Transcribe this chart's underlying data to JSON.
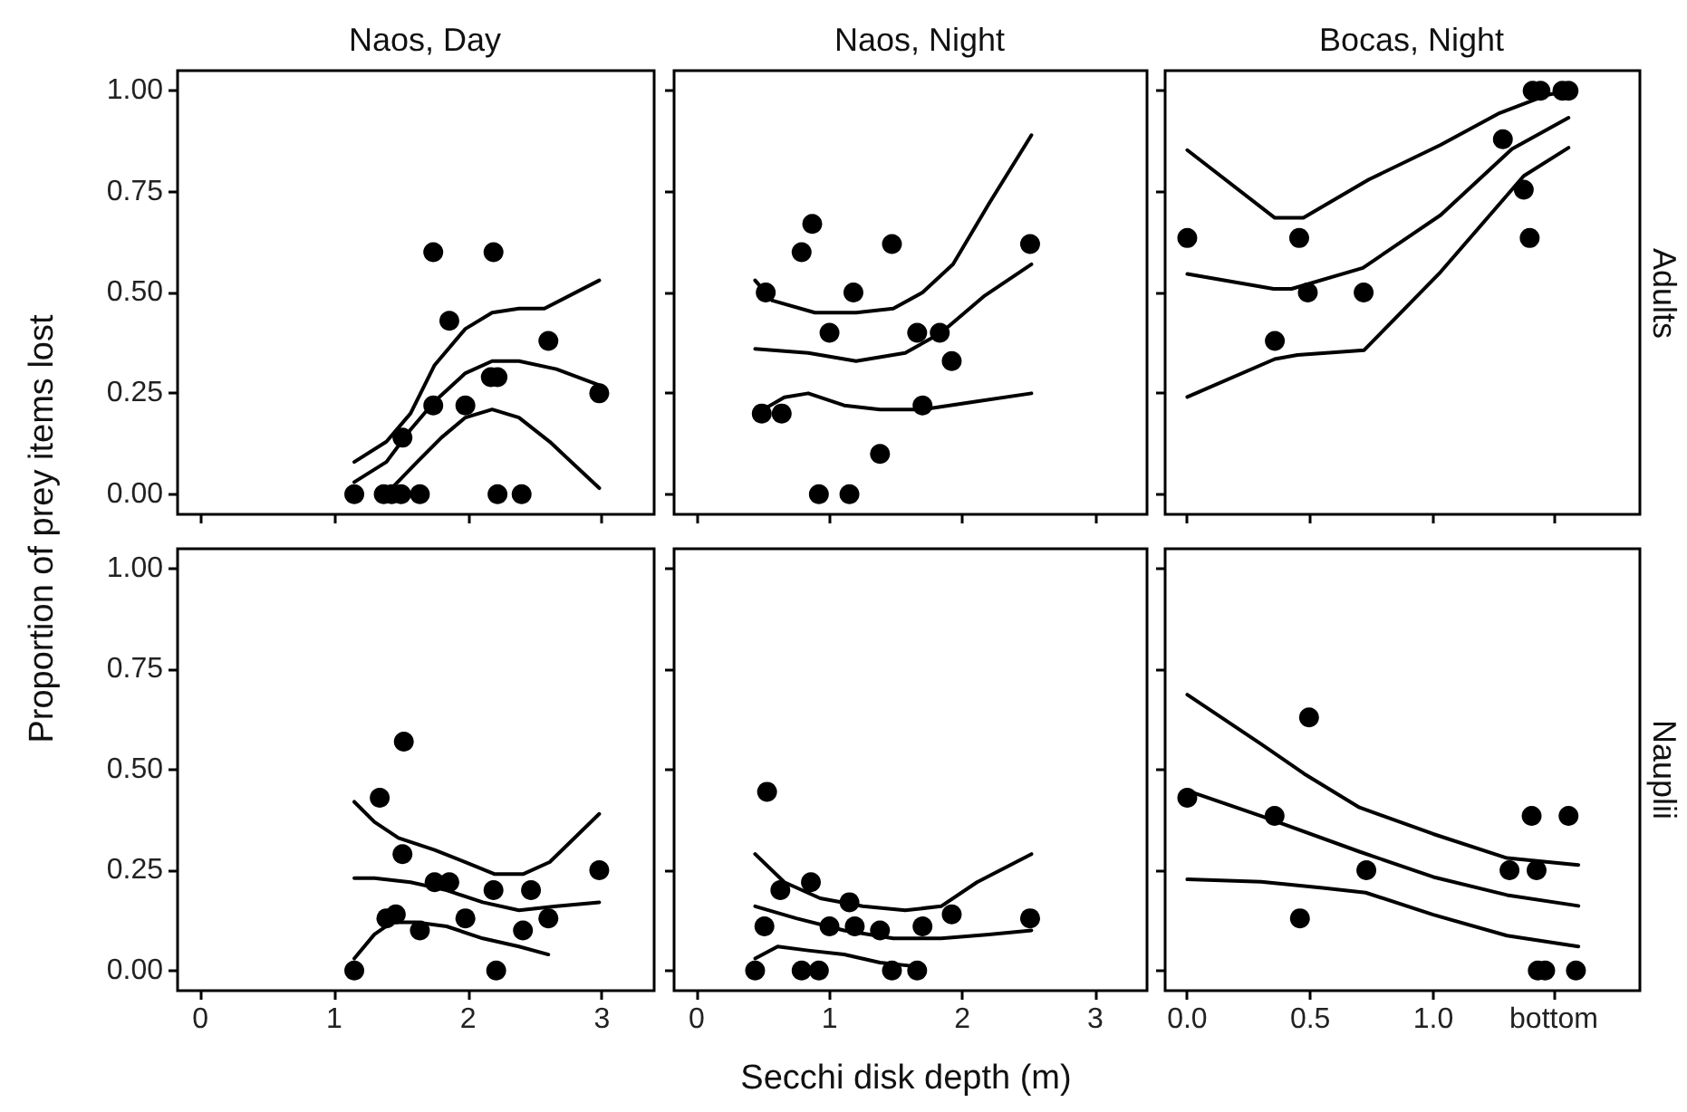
{
  "chart_data": [
    {
      "type": "scatter",
      "title": "Naos, Day",
      "ylabel": "Proportion of prey items lost",
      "xlim": [
        -0.17,
        3.39
      ],
      "xticks": [
        0,
        1,
        2,
        3
      ],
      "ylim": [
        -0.05,
        1.05
      ],
      "yticks": [
        {
          "value": 0,
          "label": "0.00"
        },
        {
          "value": 0.25,
          "label": "0.25"
        },
        {
          "value": 0.5,
          "label": "0.50"
        },
        {
          "value": 0.75,
          "label": "0.75"
        },
        {
          "value": 1,
          "label": "1.00"
        }
      ],
      "tick_labels": "y",
      "series": [
        {
          "color": "#000000",
          "x": [
            1.15,
            1.37,
            1.43,
            1.5,
            1.64,
            1.51,
            1.74,
            2.19,
            1.86,
            1.74,
            1.98,
            2.17,
            2.22,
            2.6,
            2.98,
            2.22,
            2.4
          ],
          "values": [
            0,
            0,
            0,
            0,
            0,
            0.14,
            0.6,
            0.6,
            0.43,
            0.22,
            0.22,
            0.29,
            0.29,
            0.38,
            0.25,
            0,
            0
          ]
        },
        {
          "type": "line",
          "color": "#000000",
          "x": [
            1.15,
            1.39,
            1.57,
            1.75,
            1.98,
            2.18,
            2.38,
            2.57,
            2.98
          ],
          "values": [
            0.08,
            0.13,
            0.2,
            0.32,
            0.41,
            0.45,
            0.46,
            0.46,
            0.53
          ]
        },
        {
          "type": "line",
          "color": "#000000",
          "x": [
            1.15,
            1.39,
            1.57,
            1.75,
            1.98,
            2.18,
            2.38,
            2.66,
            2.98
          ],
          "values": [
            0.03,
            0.08,
            0.16,
            0.23,
            0.3,
            0.33,
            0.33,
            0.31,
            0.27
          ]
        },
        {
          "type": "line",
          "color": "#000000",
          "x": [
            1.43,
            1.62,
            1.8,
            1.98,
            2.18,
            2.38,
            2.61,
            2.98
          ],
          "values": [
            0.015,
            0.08,
            0.14,
            0.19,
            0.21,
            0.19,
            0.13,
            0.015
          ]
        }
      ]
    },
    {
      "type": "scatter",
      "title": "Naos, Night",
      "xlim": [
        -0.17,
        3.39
      ],
      "xticks": [
        0,
        1,
        2,
        3
      ],
      "ylim": [
        -0.05,
        1.05
      ],
      "yticks": [
        0,
        0.25,
        0.5,
        0.75,
        1
      ],
      "tick_labels": false,
      "series": [
        {
          "color": "#000000",
          "x": [
            0.52,
            0.49,
            0.64,
            0.79,
            0.87,
            1.0,
            1.18,
            0.92,
            1.15,
            1.47,
            1.38,
            1.66,
            1.83,
            1.92,
            1.7,
            2.51
          ],
          "values": [
            0.5,
            0.2,
            0.2,
            0.6,
            0.67,
            0.4,
            0.5,
            0,
            0,
            0.62,
            0.1,
            0.4,
            0.4,
            0.33,
            0.22,
            0.62
          ]
        },
        {
          "type": "line",
          "color": "#000000",
          "x": [
            0.44,
            0.57,
            0.89,
            1.2,
            1.48,
            1.7,
            1.93,
            2.2,
            2.52
          ],
          "values": [
            0.53,
            0.48,
            0.45,
            0.45,
            0.46,
            0.5,
            0.57,
            0.72,
            0.89
          ]
        },
        {
          "type": "line",
          "color": "#000000",
          "x": [
            0.44,
            0.84,
            1.2,
            1.57,
            1.84,
            2.16,
            2.52
          ],
          "values": [
            0.36,
            0.35,
            0.33,
            0.35,
            0.4,
            0.49,
            0.57
          ]
        },
        {
          "type": "line",
          "color": "#000000",
          "x": [
            0.45,
            0.66,
            0.84,
            1.11,
            1.38,
            1.7,
            2.11,
            2.52
          ],
          "values": [
            0.2,
            0.24,
            0.25,
            0.22,
            0.21,
            0.21,
            0.23,
            0.25
          ]
        }
      ]
    },
    {
      "type": "scatter",
      "title": "Bocas, Night",
      "annotations": [
        "Adults"
      ],
      "xlim": [
        -0.09,
        1.84
      ],
      "xticks": [
        0,
        0.5,
        1,
        1.49
      ],
      "ylim": [
        -0.05,
        1.05
      ],
      "yticks": [
        0,
        0.25,
        0.5,
        0.75,
        1
      ],
      "tick_labels": false,
      "series": [
        {
          "color": "#000000",
          "x": [
            0,
            0.455,
            0.356,
            0.49,
            0.717,
            1.283,
            1.368,
            1.392,
            1.404,
            1.436,
            1.525,
            1.55
          ],
          "values": [
            0.635,
            0.635,
            0.38,
            0.5,
            0.5,
            0.88,
            0.755,
            0.635,
            1,
            1,
            1,
            1
          ]
        },
        {
          "type": "line",
          "color": "#000000",
          "x": [
            0,
            0.356,
            0.472,
            0.738,
            1.03,
            1.27,
            1.465,
            1.55
          ],
          "values": [
            0.853,
            0.685,
            0.685,
            0.78,
            0.866,
            0.945,
            0.99,
            1.0
          ]
        },
        {
          "type": "line",
          "color": "#000000",
          "x": [
            0,
            0.351,
            0.424,
            0.714,
            1.03,
            1.32,
            1.55
          ],
          "values": [
            0.546,
            0.509,
            0.509,
            0.561,
            0.692,
            0.856,
            0.933
          ]
        },
        {
          "type": "line",
          "color": "#000000",
          "x": [
            0,
            0.356,
            0.448,
            0.719,
            1.03,
            1.368,
            1.55
          ],
          "values": [
            0.241,
            0.335,
            0.345,
            0.357,
            0.551,
            0.789,
            0.859
          ]
        }
      ]
    },
    {
      "type": "scatter",
      "xlim": [
        -0.17,
        3.39
      ],
      "xticks": [
        0,
        1,
        2,
        3
      ],
      "ylim": [
        -0.05,
        1.05
      ],
      "yticks": [
        {
          "value": 0,
          "label": "0.00"
        },
        {
          "value": 0.25,
          "label": "0.25"
        },
        {
          "value": 0.5,
          "label": "0.50"
        },
        {
          "value": 0.75,
          "label": "0.75"
        },
        {
          "value": 1,
          "label": "1.00"
        }
      ],
      "series": [
        {
          "color": "#000000",
          "x": [
            1.15,
            1.34,
            1.52,
            1.51,
            1.39,
            1.46,
            1.64,
            1.75,
            1.86,
            1.98,
            2.19,
            2.21,
            2.47,
            2.41,
            2.6,
            2.98
          ],
          "values": [
            0,
            0.43,
            0.57,
            0.29,
            0.13,
            0.14,
            0.1,
            0.22,
            0.22,
            0.13,
            0.2,
            0,
            0.2,
            0.1,
            0.13,
            0.25
          ]
        },
        {
          "type": "line",
          "color": "#000000",
          "x": [
            1.15,
            1.3,
            1.48,
            1.75,
            1.98,
            2.2,
            2.41,
            2.61,
            2.98
          ],
          "values": [
            0.42,
            0.37,
            0.33,
            0.3,
            0.27,
            0.24,
            0.24,
            0.27,
            0.39
          ]
        },
        {
          "type": "line",
          "color": "#000000",
          "x": [
            1.15,
            1.3,
            1.57,
            1.84,
            2.11,
            2.38,
            2.66,
            2.98
          ],
          "values": [
            0.23,
            0.23,
            0.22,
            0.2,
            0.17,
            0.15,
            0.16,
            0.17
          ]
        },
        {
          "type": "line",
          "color": "#000000",
          "x": [
            1.15,
            1.3,
            1.43,
            1.61,
            1.84,
            2.11,
            2.38,
            2.6
          ],
          "values": [
            0.03,
            0.09,
            0.12,
            0.12,
            0.11,
            0.08,
            0.06,
            0.04
          ]
        }
      ]
    },
    {
      "type": "scatter",
      "xlabel": "Secchi disk depth (m)",
      "xlim": [
        -0.17,
        3.39
      ],
      "xticks": [
        0,
        1,
        2,
        3
      ],
      "ylim": [
        -0.05,
        1.05
      ],
      "yticks": [
        0,
        0.25,
        0.5,
        0.75,
        1
      ],
      "tick_labels": "x",
      "series": [
        {
          "color": "#000000",
          "x": [
            0.53,
            0.63,
            0.86,
            1.15,
            0.51,
            1.0,
            1.19,
            1.38,
            1.7,
            1.92,
            2.51,
            0.44,
            0.79,
            0.92,
            1.47,
            1.66
          ],
          "values": [
            0.445,
            0.2,
            0.22,
            0.17,
            0.11,
            0.11,
            0.11,
            0.1,
            0.11,
            0.14,
            0.13,
            0,
            0,
            0,
            0,
            0
          ]
        },
        {
          "type": "line",
          "color": "#000000",
          "x": [
            0.44,
            0.66,
            0.93,
            1.25,
            1.57,
            1.84,
            2.11,
            2.52
          ],
          "values": [
            0.29,
            0.22,
            0.18,
            0.16,
            0.15,
            0.16,
            0.22,
            0.29
          ]
        },
        {
          "type": "line",
          "color": "#000000",
          "x": [
            0.44,
            0.75,
            1.11,
            1.48,
            1.84,
            2.2,
            2.52
          ],
          "values": [
            0.16,
            0.13,
            0.1,
            0.08,
            0.08,
            0.09,
            0.1
          ]
        },
        {
          "type": "line",
          "color": "#000000",
          "x": [
            0.44,
            0.61,
            0.84,
            1.11,
            1.38,
            1.66
          ],
          "values": [
            0.03,
            0.06,
            0.05,
            0.04,
            0.02,
            0.01
          ]
        }
      ]
    },
    {
      "type": "scatter",
      "annotations": [
        "Nauplii"
      ],
      "xlim": [
        -0.09,
        1.84
      ],
      "xticks": [
        {
          "value": 0,
          "label": "0.0"
        },
        {
          "value": 0.5,
          "label": "0.5"
        },
        {
          "value": 1,
          "label": "1.0"
        },
        {
          "value": 1.49,
          "label": "bottom"
        }
      ],
      "ylim": [
        -0.05,
        1.05
      ],
      "yticks": [
        0,
        0.25,
        0.5,
        0.75,
        1
      ],
      "tick_labels": "x",
      "series": [
        {
          "color": "#000000",
          "x": [
            0,
            0.495,
            0.355,
            0.458,
            0.728,
            1.31,
            1.4,
            1.55,
            1.42,
            1.425,
            1.455,
            1.58
          ],
          "values": [
            0.43,
            0.63,
            0.385,
            0.13,
            0.25,
            0.25,
            0.385,
            0.385,
            0.25,
            0,
            0,
            0
          ]
        },
        {
          "type": "line",
          "color": "#000000",
          "x": [
            0,
            0.3,
            0.475,
            0.7,
            1.0,
            1.3,
            1.59
          ],
          "values": [
            0.687,
            0.564,
            0.49,
            0.406,
            0.34,
            0.28,
            0.263
          ]
        },
        {
          "type": "line",
          "color": "#000000",
          "x": [
            0,
            0.3,
            0.7,
            1.0,
            1.3,
            1.59
          ],
          "values": [
            0.448,
            0.385,
            0.296,
            0.233,
            0.188,
            0.161
          ]
        },
        {
          "type": "line",
          "color": "#000000",
          "x": [
            0,
            0.3,
            0.55,
            0.725,
            1.0,
            1.3,
            1.59
          ],
          "values": [
            0.227,
            0.221,
            0.206,
            0.194,
            0.139,
            0.087,
            0.06
          ]
        }
      ]
    }
  ]
}
